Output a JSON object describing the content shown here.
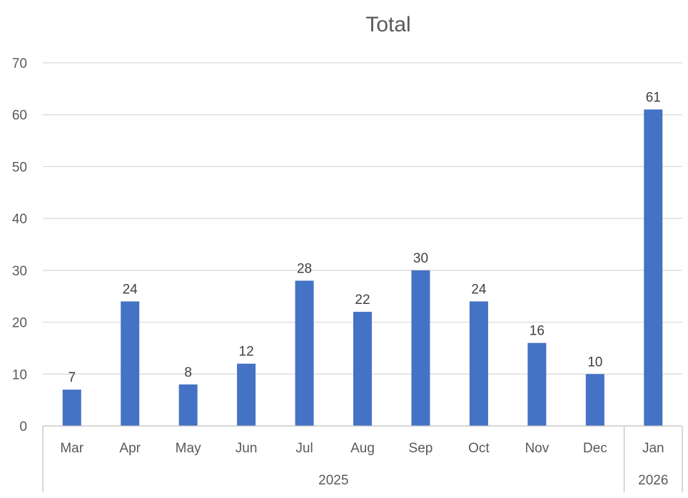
{
  "chart_data": {
    "type": "bar",
    "title": "Total",
    "categories": [
      "Mar",
      "Apr",
      "May",
      "Jun",
      "Jul",
      "Aug",
      "Sep",
      "Oct",
      "Nov",
      "Dec",
      "Jan"
    ],
    "groups": [
      {
        "label": "2025",
        "count": 10
      },
      {
        "label": "2026",
        "count": 1
      }
    ],
    "values": [
      7,
      24,
      8,
      12,
      28,
      22,
      30,
      24,
      16,
      10,
      61
    ],
    "ylim": [
      0,
      70
    ],
    "yticks": [
      0,
      10,
      20,
      30,
      40,
      50,
      60,
      70
    ],
    "grid": true,
    "bar_color": "#4472C4",
    "data_labels": true
  }
}
